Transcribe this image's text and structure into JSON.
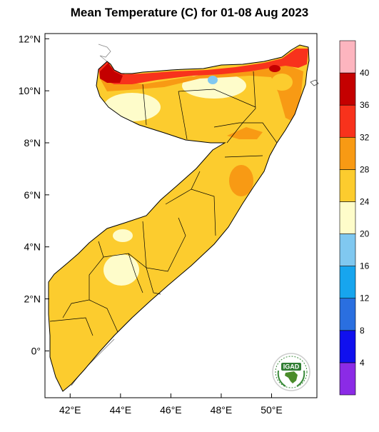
{
  "title": "Mean Temperature (C) for 01-08 Aug 2023",
  "axes": {
    "lat_ticks": [
      {
        "label": "12°N",
        "value": 12
      },
      {
        "label": "10°N",
        "value": 10
      },
      {
        "label": "8°N",
        "value": 8
      },
      {
        "label": "6°N",
        "value": 6
      },
      {
        "label": "4°N",
        "value": 4
      },
      {
        "label": "2°N",
        "value": 2
      },
      {
        "label": "0°",
        "value": 0
      }
    ],
    "lon_ticks": [
      {
        "label": "42°E",
        "value": 42
      },
      {
        "label": "44°E",
        "value": 44
      },
      {
        "label": "46°E",
        "value": 46
      },
      {
        "label": "48°E",
        "value": 48
      },
      {
        "label": "50°E",
        "value": 50
      }
    ],
    "lon_range": [
      41,
      51.8
    ],
    "lat_range": [
      -1.8,
      12.2
    ]
  },
  "colorbar": {
    "bins": [
      {
        "color": "#8b2be6",
        "upper": 4
      },
      {
        "color": "#1010ee",
        "upper": 8
      },
      {
        "color": "#2a6fe0",
        "upper": 12
      },
      {
        "color": "#17a5ee",
        "upper": 16
      },
      {
        "color": "#80c8f0",
        "upper": 20
      },
      {
        "color": "#fefcca",
        "upper": 24
      },
      {
        "color": "#fccc2e",
        "upper": 28
      },
      {
        "color": "#f89a14",
        "upper": 32
      },
      {
        "color": "#f8321c",
        "upper": 36
      },
      {
        "color": "#c40000",
        "upper": 40
      },
      {
        "color": "#fdb5bf",
        "upper": null
      }
    ],
    "labels": [
      "4",
      "8",
      "12",
      "16",
      "20",
      "24",
      "28",
      "32",
      "36",
      "40"
    ]
  },
  "logo": {
    "text": "IGAD"
  }
}
